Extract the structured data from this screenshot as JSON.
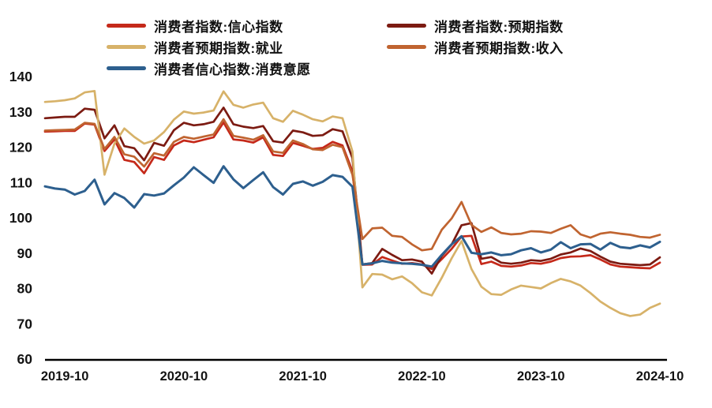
{
  "page": {
    "background": "#ffffff"
  },
  "legend": {
    "items": [
      {
        "label": "消费者指数:信心指数",
        "series": "信心指数",
        "color": "#c5291a"
      },
      {
        "label": "消费者指数:预期指数",
        "series": "预期指数",
        "color": "#7c1b12"
      },
      {
        "label": "消费者预期指数:就业",
        "series": "就业",
        "color": "#d7b269"
      },
      {
        "label": "消费者预期指数:收入",
        "series": "收入",
        "color": "#c06430"
      },
      {
        "label": "消费者信心指数:消费意愿",
        "series": "消费意愿",
        "color": "#2d5f8e"
      }
    ]
  },
  "chart_data": {
    "type": "line",
    "title": "",
    "xlabel": "",
    "ylabel": "",
    "ylim": [
      60,
      140
    ],
    "grid": false,
    "legend_position": "top",
    "y_ticks": [
      140,
      130,
      120,
      110,
      100,
      90,
      80,
      70,
      60
    ],
    "x_tick_labels": [
      "2019-10",
      "2020-10",
      "2021-10",
      "2022-10",
      "2023-10",
      "2024-10"
    ],
    "x": [
      "2019-08",
      "2019-09",
      "2019-10",
      "2019-11",
      "2019-12",
      "2020-01",
      "2020-02",
      "2020-03",
      "2020-04",
      "2020-05",
      "2020-06",
      "2020-07",
      "2020-08",
      "2020-09",
      "2020-10",
      "2020-11",
      "2020-12",
      "2021-01",
      "2021-02",
      "2021-03",
      "2021-04",
      "2021-05",
      "2021-06",
      "2021-07",
      "2021-08",
      "2021-09",
      "2021-10",
      "2021-11",
      "2021-12",
      "2022-01",
      "2022-02",
      "2022-03",
      "2022-04",
      "2022-05",
      "2022-06",
      "2022-07",
      "2022-08",
      "2022-09",
      "2022-10",
      "2022-11",
      "2022-12",
      "2023-01",
      "2023-02",
      "2023-03",
      "2023-04",
      "2023-05",
      "2023-06",
      "2023-07",
      "2023-08",
      "2023-09",
      "2023-10",
      "2023-11",
      "2023-12",
      "2024-01",
      "2024-02",
      "2024-03",
      "2024-04",
      "2024-05",
      "2024-06",
      "2024-07",
      "2024-08",
      "2024-09",
      "2024-10"
    ],
    "series": [
      {
        "name": "消费者指数:信心指数",
        "color": "#c5291a",
        "width": 2.7,
        "values": [
          124.4,
          124.5,
          124.6,
          124.6,
          126.7,
          126.4,
          118.9,
          122.2,
          116.4,
          115.8,
          112.6,
          117.2,
          116.4,
          120.5,
          121.9,
          121.4,
          122.1,
          122.8,
          127.0,
          122.2,
          121.9,
          121.3,
          122.8,
          117.8,
          117.5,
          121.2,
          120.4,
          119.5,
          119.8,
          121.5,
          120.5,
          113.2,
          86.7,
          86.8,
          88.9,
          87.9,
          87.0,
          87.2,
          86.8,
          85.5,
          88.3,
          91.2,
          94.7,
          94.9,
          86.9,
          87.6,
          86.4,
          86.2,
          86.5,
          87.2,
          87.0,
          87.6,
          88.6,
          89.0,
          89.1,
          89.4,
          88.2,
          86.8,
          86.2,
          86.0,
          85.8,
          85.7,
          87.3
        ]
      },
      {
        "name": "消费者指数:预期指数",
        "color": "#7c1b12",
        "width": 2.7,
        "values": [
          128.2,
          128.4,
          128.6,
          128.6,
          130.9,
          130.6,
          122.5,
          126.2,
          120.3,
          119.7,
          116.3,
          121.2,
          120.4,
          124.8,
          126.9,
          126.2,
          126.5,
          127.2,
          131.2,
          126.5,
          125.8,
          125.4,
          126.0,
          121.7,
          121.3,
          124.7,
          124.2,
          123.2,
          123.4,
          125.1,
          124.5,
          116.9,
          86.8,
          87.2,
          91.2,
          89.5,
          88.0,
          88.2,
          87.6,
          84.2,
          89.2,
          92.4,
          97.9,
          98.5,
          88.4,
          88.9,
          87.3,
          87.0,
          87.3,
          88.0,
          87.8,
          88.4,
          89.6,
          90.2,
          91.3,
          90.6,
          89.0,
          87.6,
          87.0,
          86.8,
          86.6,
          86.8,
          88.8
        ]
      },
      {
        "name": "消费者预期指数:就业",
        "color": "#d7b269",
        "width": 2.7,
        "values": [
          132.8,
          133.0,
          133.3,
          133.8,
          135.5,
          135.9,
          112.2,
          121.0,
          125.3,
          122.9,
          121.0,
          121.9,
          124.3,
          127.8,
          130.1,
          129.5,
          129.8,
          130.4,
          135.8,
          132.0,
          131.2,
          132.1,
          132.6,
          128.2,
          127.2,
          130.3,
          129.2,
          127.9,
          127.3,
          128.7,
          128.2,
          118.8,
          80.3,
          84.1,
          83.9,
          82.6,
          83.4,
          81.5,
          78.9,
          78.0,
          83.0,
          88.5,
          93.4,
          85.5,
          80.5,
          78.4,
          78.2,
          79.7,
          80.8,
          80.4,
          80.0,
          81.5,
          82.7,
          82.0,
          80.8,
          78.7,
          76.3,
          74.5,
          73.0,
          72.2,
          72.6,
          74.5,
          75.7
        ]
      },
      {
        "name": "消费者预期指数:收入",
        "color": "#c06430",
        "width": 2.7,
        "values": [
          124.7,
          124.8,
          124.9,
          125.0,
          126.9,
          126.6,
          119.5,
          122.9,
          118.0,
          117.3,
          114.5,
          118.3,
          117.6,
          121.5,
          122.9,
          122.4,
          123.0,
          123.6,
          127.9,
          123.2,
          122.7,
          122.1,
          123.4,
          118.8,
          118.4,
          121.9,
          120.9,
          119.4,
          119.2,
          120.7,
          120.0,
          112.2,
          94.0,
          97.0,
          97.2,
          94.9,
          94.6,
          92.5,
          90.8,
          91.2,
          96.6,
          99.8,
          104.5,
          98.0,
          96.0,
          97.3,
          95.7,
          95.3,
          95.5,
          96.2,
          96.1,
          95.7,
          96.9,
          97.9,
          95.3,
          94.4,
          95.5,
          95.9,
          95.5,
          95.2,
          94.6,
          94.4,
          95.2
        ]
      },
      {
        "name": "消费者信心指数:消费意愿",
        "color": "#2d5f8e",
        "width": 3.0,
        "values": [
          108.9,
          108.3,
          108.0,
          106.6,
          107.6,
          110.8,
          103.8,
          107.0,
          105.6,
          102.9,
          106.7,
          106.3,
          106.9,
          109.2,
          111.4,
          114.3,
          112.1,
          109.9,
          114.6,
          110.9,
          108.4,
          110.7,
          112.9,
          108.7,
          106.6,
          109.6,
          110.3,
          109.1,
          110.2,
          112.1,
          111.6,
          108.8,
          86.8,
          87.1,
          87.8,
          87.3,
          87.1,
          87.0,
          86.7,
          86.2,
          89.5,
          92.5,
          94.8,
          90.1,
          89.7,
          90.2,
          89.4,
          89.7,
          90.8,
          91.4,
          90.2,
          91.0,
          93.1,
          91.4,
          92.5,
          92.6,
          91.0,
          92.9,
          91.7,
          91.4,
          92.2,
          91.6,
          93.2
        ]
      }
    ]
  }
}
